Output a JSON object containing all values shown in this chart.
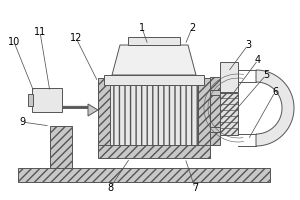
{
  "bg_color": "#ffffff",
  "line_color": "#555555",
  "fill_light": "#e8e8e8",
  "fill_mid": "#c8c8c8",
  "fill_hatch": "#d0d0d0",
  "label_fontsize": 7,
  "lw": 0.7
}
